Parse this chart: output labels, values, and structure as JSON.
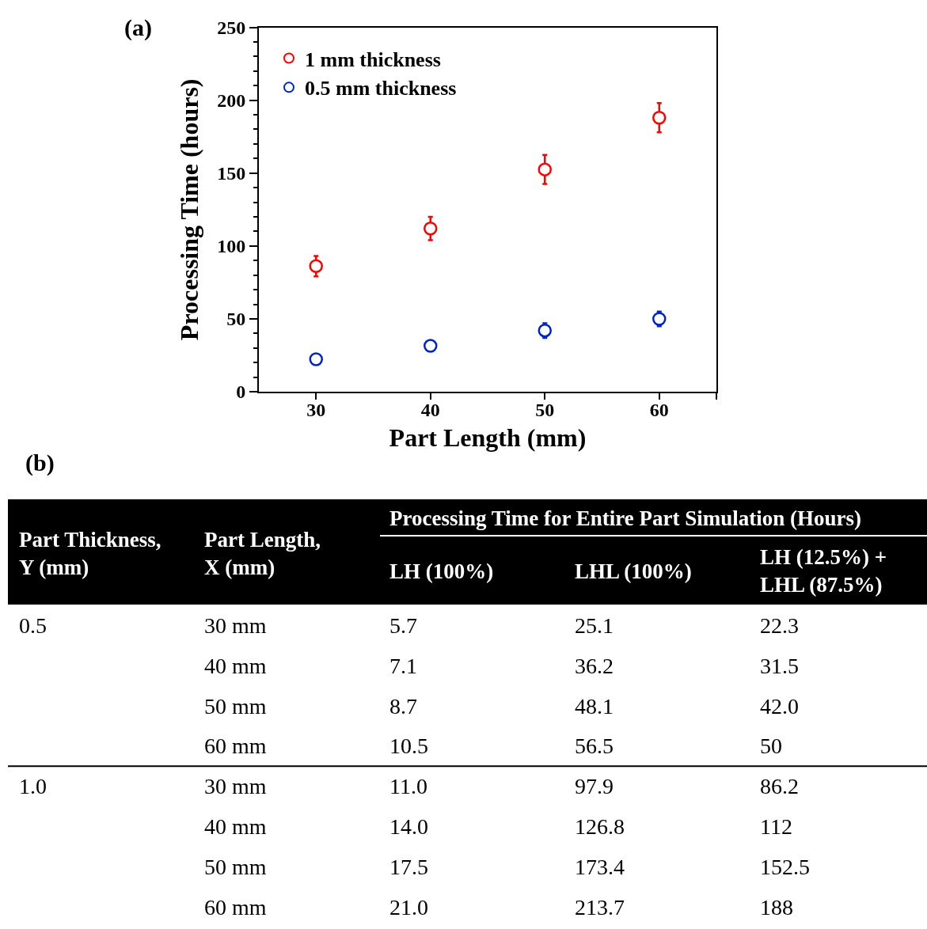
{
  "chart_data": [
    {
      "type": "scatter",
      "title": "(a)",
      "xlabel": "Part Length (mm)",
      "ylabel": "Processing Time (hours)",
      "x": [
        30,
        40,
        50,
        60
      ],
      "xlim": [
        25,
        65
      ],
      "xticks": [
        30,
        40,
        50,
        60
      ],
      "ylim": [
        0,
        250
      ],
      "yticks": [
        0,
        50,
        100,
        150,
        200,
        250
      ],
      "marker": "circle",
      "legend": "top left",
      "series": [
        {
          "name": "1 mm thickness",
          "color": "#ff0000",
          "values": [
            86.2,
            112,
            152.5,
            188
          ],
          "errors": [
            7,
            8,
            10,
            10
          ]
        },
        {
          "name": "0.5 mm thickness",
          "color": "#0022cc",
          "values": [
            22.3,
            31.5,
            42.0,
            50
          ],
          "errors": [
            null,
            null,
            5,
            5
          ]
        }
      ]
    },
    {
      "type": "other",
      "title": "(b)",
      "subtitle": "Processing Time for Entire Part Simulation (Hours)",
      "categories": [
        "Part Thickness,\nY (mm)",
        "Part Length,\nX (mm)",
        "LH (100%)",
        "LHL (100%)",
        "LH (12.5%) +\nLHL (87.5%)"
      ],
      "cell_labels": [
        [
          "0.5",
          "30 mm",
          "5.7",
          "25.1",
          "22.3"
        ],
        [
          null,
          "40 mm",
          "7.1",
          "36.2",
          "31.5"
        ],
        [
          null,
          "50 mm",
          "8.7",
          "48.1",
          "42.0"
        ],
        [
          null,
          "60 mm",
          "10.5",
          "56.5",
          "50"
        ],
        [
          "1.0",
          "30 mm",
          "11.0",
          "97.9",
          "86.2"
        ],
        [
          null,
          "40 mm",
          "14.0",
          "126.8",
          "112"
        ],
        [
          null,
          "50 mm",
          "17.5",
          "173.4",
          "152.5"
        ],
        [
          null,
          "60 mm",
          "21.0",
          "213.7",
          "188"
        ]
      ]
    }
  ]
}
